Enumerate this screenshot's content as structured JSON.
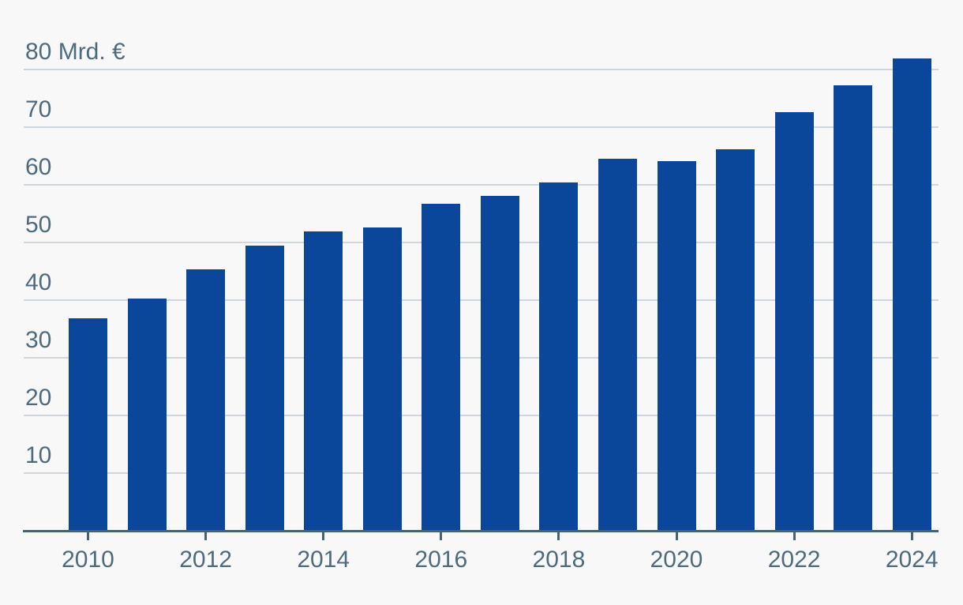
{
  "chart_data": {
    "type": "bar",
    "title": "",
    "unit_label": "Mrd. €",
    "categories": [
      2010,
      2011,
      2012,
      2013,
      2014,
      2015,
      2016,
      2017,
      2018,
      2019,
      2020,
      2021,
      2022,
      2023,
      2024
    ],
    "values": [
      36.8,
      40.3,
      45.4,
      49.5,
      51.9,
      52.6,
      56.7,
      58.1,
      60.4,
      64.5,
      64.1,
      66.1,
      72.6,
      77.3,
      81.9
    ],
    "series": [
      {
        "name": "value",
        "values": [
          36.8,
          40.3,
          45.4,
          49.5,
          51.9,
          52.6,
          56.7,
          58.1,
          60.4,
          64.5,
          64.1,
          66.1,
          72.6,
          77.3,
          81.9
        ]
      }
    ],
    "xlabel": "",
    "ylabel": "Mrd. €",
    "ylim": [
      0,
      92
    ],
    "y_ticks": [
      10,
      20,
      30,
      40,
      50,
      60,
      70,
      80
    ],
    "y_tick_labels": [
      "10",
      "20",
      "30",
      "40",
      "50",
      "60",
      "70",
      "80 Mrd. €"
    ],
    "x_tick_years": [
      2010,
      2012,
      2014,
      2016,
      2018,
      2020,
      2022,
      2024
    ],
    "x_tick_labels": [
      "2010",
      "2012",
      "2014",
      "2016",
      "2018",
      "2020",
      "2022",
      "2024"
    ],
    "grid": true,
    "legend": false,
    "legend_position": "none",
    "colors": {
      "bar": "#0a4699",
      "background": "#f8f8f8",
      "gridline": "#cfd6dc",
      "axis_line": "#47626f",
      "label_text": "#4e6b7e"
    }
  }
}
